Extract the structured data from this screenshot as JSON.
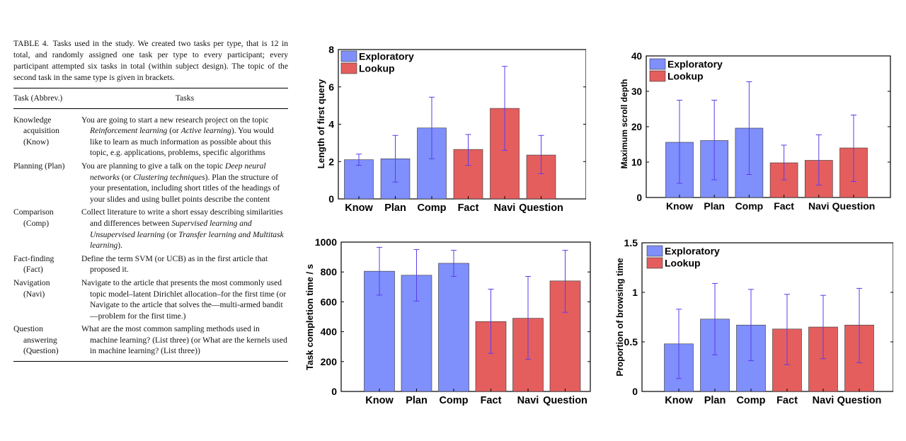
{
  "table": {
    "label": "TABLE 4.",
    "caption": "Tasks used in the study. We created two tasks per type, that is 12 in total, and randomly assigned one task per type to every participant; every participant attempted six tasks in total (within subject design). The topic of the second task in the same type is given in brackets.",
    "header": {
      "task": "Task (Abbrev.)",
      "tasks": "Tasks"
    },
    "rows": [
      {
        "task": [
          "Knowledge",
          "acquisition",
          "(Know)"
        ],
        "description": [
          {
            "t": "You are going to start a new research project on the topic "
          },
          {
            "t": "Reinforcement learning",
            "i": true
          },
          {
            "t": " (or "
          },
          {
            "t": "Active learning",
            "i": true
          },
          {
            "t": "). You would like to learn as much information as possible about this topic, e.g. applications, problems, specific algorithms"
          }
        ]
      },
      {
        "task": [
          "Planning (Plan)"
        ],
        "description": [
          {
            "t": "You are planning to give a talk on the topic "
          },
          {
            "t": "Deep neural networks",
            "i": true
          },
          {
            "t": " (or "
          },
          {
            "t": "Clustering techniques",
            "i": true
          },
          {
            "t": "). Plan the structure of your presentation, including short titles of the headings of your slides and using bullet points describe the content"
          }
        ]
      },
      {
        "task": [
          "Comparison",
          "(Comp)"
        ],
        "description": [
          {
            "t": "Collect literature to write a short essay describing similarities and differences between "
          },
          {
            "t": "Supervised learning and Unsupervised learning",
            "i": true
          },
          {
            "t": " (or "
          },
          {
            "t": "Transfer learning and Multitask learning",
            "i": true
          },
          {
            "t": ")."
          }
        ]
      },
      {
        "task": [
          "Fact-finding",
          "(Fact)"
        ],
        "description": [
          {
            "t": "Define the term SVM (or UCB) as in the first article that proposed it."
          }
        ]
      },
      {
        "task": [
          "Navigation",
          "(Navi)"
        ],
        "description": [
          {
            "t": "Navigate to the article that presents the most commonly used topic model–latent Dirichlet allocation–for the first time (or Navigate to the article that solves the—multi-armed bandit—problem for the first time.)"
          }
        ]
      },
      {
        "task": [
          "Question",
          "answering",
          "(Question)"
        ],
        "description": [
          {
            "t": "What are the most common sampling methods used in machine learning? (List three) (or What are the kernels used in machine learning? (List three))"
          }
        ]
      }
    ]
  },
  "colors": {
    "exploratory": "#7f8ffb",
    "lookup": "#e45e5e",
    "errorbar": "#5a3cf0"
  },
  "chart_data": [
    {
      "type": "bar",
      "ylabel": "Length of first query",
      "categories": [
        "Know",
        "Plan",
        "Comp",
        "Fact",
        "Navi",
        "Question"
      ],
      "groups": [
        "exploratory",
        "exploratory",
        "exploratory",
        "lookup",
        "lookup",
        "lookup"
      ],
      "values": [
        2.1,
        2.15,
        3.8,
        2.65,
        4.85,
        2.35
      ],
      "err_low": [
        1.8,
        0.9,
        2.15,
        1.8,
        2.6,
        1.35
      ],
      "err_high": [
        2.4,
        3.4,
        5.45,
        3.45,
        7.1,
        3.4
      ],
      "ylim": [
        0,
        8
      ],
      "yticks": [
        0,
        2,
        4,
        6,
        8
      ],
      "legend": [
        "Exploratory",
        "Lookup"
      ],
      "legend_position": "top-left"
    },
    {
      "type": "bar",
      "ylabel": "Maximum scroll depth",
      "categories": [
        "Know",
        "Plan",
        "Comp",
        "Fact",
        "Navi",
        "Question"
      ],
      "groups": [
        "exploratory",
        "exploratory",
        "exploratory",
        "lookup",
        "lookup",
        "lookup"
      ],
      "values": [
        15.6,
        16.1,
        19.6,
        9.8,
        10.5,
        14.0
      ],
      "err_low": [
        4.0,
        5.0,
        6.5,
        5.0,
        3.5,
        4.5
      ],
      "err_high": [
        27.5,
        27.5,
        32.7,
        14.8,
        17.7,
        23.3
      ],
      "ylim": [
        0,
        40
      ],
      "yticks": [
        0,
        10,
        20,
        30,
        40
      ],
      "legend": [
        "Exploratory",
        "Lookup"
      ],
      "legend_position": "top-left"
    },
    {
      "type": "bar",
      "ylabel": "Task completion time / s",
      "categories": [
        "Know",
        "Plan",
        "Comp",
        "Fact",
        "Navi",
        "Question"
      ],
      "groups": [
        "exploratory",
        "exploratory",
        "exploratory",
        "lookup",
        "lookup",
        "lookup"
      ],
      "values": [
        805,
        778,
        858,
        468,
        490,
        740
      ],
      "err_low": [
        645,
        605,
        770,
        255,
        215,
        530
      ],
      "err_high": [
        965,
        950,
        945,
        685,
        770,
        945
      ],
      "ylim": [
        0,
        1000
      ],
      "yticks": [
        0,
        200,
        400,
        600,
        800,
        1000
      ],
      "legend": [],
      "legend_position": "none"
    },
    {
      "type": "bar",
      "ylabel": "Proportion of browsing time",
      "categories": [
        "Know",
        "Plan",
        "Comp",
        "Fact",
        "Navi",
        "Question"
      ],
      "groups": [
        "exploratory",
        "exploratory",
        "exploratory",
        "lookup",
        "lookup",
        "lookup"
      ],
      "values": [
        0.48,
        0.73,
        0.67,
        0.63,
        0.65,
        0.67
      ],
      "err_low": [
        0.13,
        0.37,
        0.31,
        0.27,
        0.33,
        0.29
      ],
      "err_high": [
        0.83,
        1.09,
        1.03,
        0.98,
        0.97,
        1.04
      ],
      "ylim": [
        0,
        1.5
      ],
      "yticks": [
        0,
        0.5,
        1,
        1.5
      ],
      "ytick_labels": [
        "0",
        "0.5",
        "1",
        "1.5"
      ],
      "legend": [
        "Exploratory",
        "Lookup"
      ],
      "legend_position": "top-left"
    }
  ]
}
